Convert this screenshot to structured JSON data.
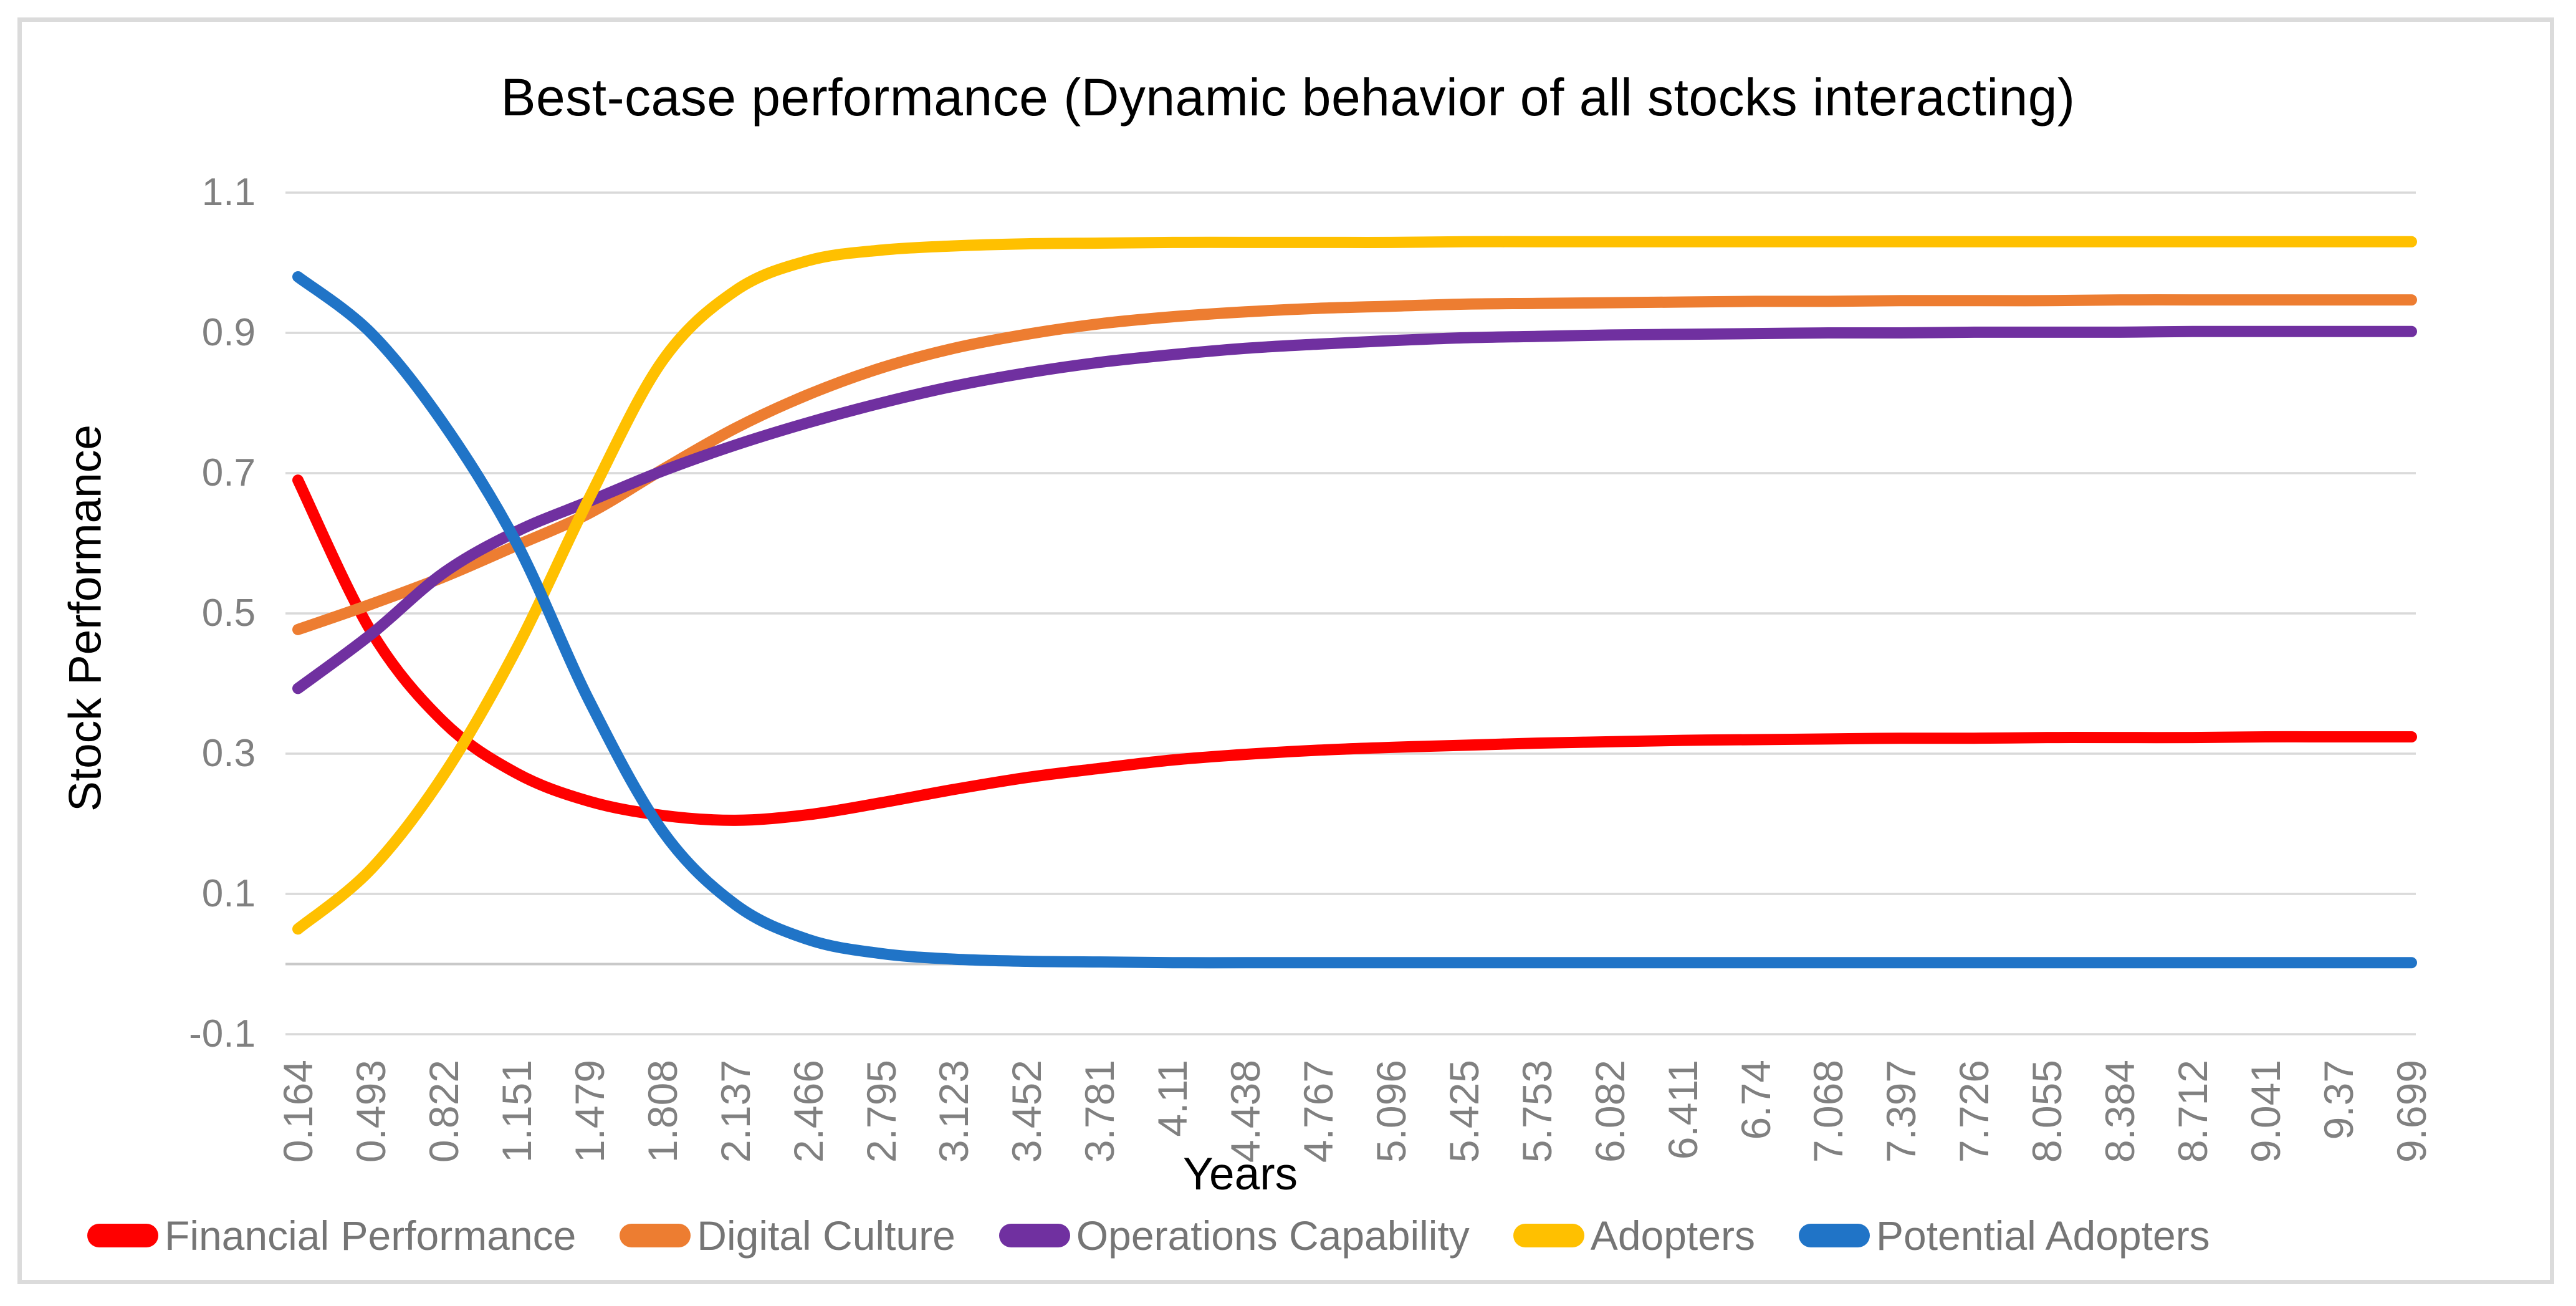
{
  "title": "Best-case performance (Dynamic behavior of all stocks interacting)",
  "colors": {
    "grid": "#D9D9D9",
    "zero_axis": "#C9C9C9",
    "frame_border": "#DBDBDB",
    "tick_text": "#808080",
    "legend_text": "#757575",
    "title_text": "#000000"
  },
  "chart_data": {
    "type": "line",
    "title": "Best-case performance (Dynamic behavior of all stocks interacting)",
    "xlabel": "Years",
    "ylabel": "Stock Performance",
    "x_tick_labels": [
      "0.164",
      "0.493",
      "0.822",
      "1.151",
      "1.479",
      "1.808",
      "2.137",
      "2.466",
      "2.795",
      "3.123",
      "3.452",
      "3.781",
      "4.11",
      "4.438",
      "4.767",
      "5.096",
      "5.425",
      "5.753",
      "6.082",
      "6.411",
      "6.74",
      "7.068",
      "7.397",
      "7.726",
      "8.055",
      "8.384",
      "8.712",
      "9.041",
      "9.37",
      "9.699"
    ],
    "y_tick_labels": [
      "1.1",
      "0.9",
      "0.7",
      "0.5",
      "0.3",
      "0.1",
      "-0.1"
    ],
    "ylim": [
      -0.1,
      1.1
    ],
    "grid": "horizontal",
    "legend_position": "bottom",
    "series": [
      {
        "name": "Financial Performance",
        "color": "#FF0000",
        "values": [
          0.69,
          0.475,
          0.345,
          0.272,
          0.232,
          0.212,
          0.205,
          0.213,
          0.23,
          0.249,
          0.266,
          0.279,
          0.291,
          0.299,
          0.305,
          0.309,
          0.312,
          0.315,
          0.317,
          0.319,
          0.32,
          0.321,
          0.322,
          0.322,
          0.323,
          0.323,
          0.323,
          0.324,
          0.324,
          0.324
        ]
      },
      {
        "name": "Digital Culture",
        "color": "#ED7D31",
        "values": [
          0.477,
          0.513,
          0.552,
          0.597,
          0.643,
          0.705,
          0.764,
          0.812,
          0.85,
          0.878,
          0.898,
          0.913,
          0.923,
          0.93,
          0.935,
          0.938,
          0.941,
          0.942,
          0.943,
          0.944,
          0.945,
          0.945,
          0.946,
          0.946,
          0.946,
          0.947,
          0.947,
          0.947,
          0.947,
          0.947
        ]
      },
      {
        "name": "Operations Capability",
        "color": "#7030A0",
        "values": [
          0.393,
          0.47,
          0.558,
          0.617,
          0.66,
          0.703,
          0.74,
          0.772,
          0.8,
          0.824,
          0.843,
          0.858,
          0.869,
          0.878,
          0.884,
          0.889,
          0.893,
          0.895,
          0.897,
          0.898,
          0.899,
          0.9,
          0.9,
          0.901,
          0.901,
          0.901,
          0.902,
          0.902,
          0.902,
          0.902
        ]
      },
      {
        "name": "Adopters",
        "color": "#FFC000",
        "values": [
          0.05,
          0.135,
          0.27,
          0.45,
          0.665,
          0.86,
          0.96,
          1.003,
          1.018,
          1.024,
          1.027,
          1.028,
          1.029,
          1.029,
          1.029,
          1.029,
          1.03,
          1.03,
          1.03,
          1.03,
          1.03,
          1.03,
          1.03,
          1.03,
          1.03,
          1.03,
          1.03,
          1.03,
          1.03,
          1.03
        ]
      },
      {
        "name": "Potential Adopters",
        "color": "#2074C7",
        "values": [
          0.98,
          0.9,
          0.77,
          0.6,
          0.375,
          0.19,
          0.085,
          0.035,
          0.015,
          0.007,
          0.004,
          0.003,
          0.002,
          0.002,
          0.002,
          0.002,
          0.002,
          0.002,
          0.002,
          0.002,
          0.002,
          0.002,
          0.002,
          0.002,
          0.002,
          0.002,
          0.002,
          0.002,
          0.002,
          0.002
        ]
      }
    ]
  }
}
